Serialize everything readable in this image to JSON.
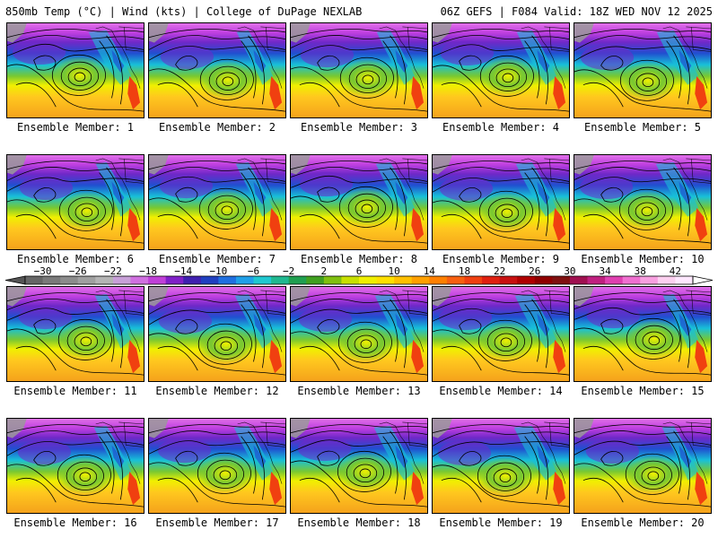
{
  "header": {
    "left": "850mb Temp (°C) | Wind (kts) | College of DuPage NEXLAB",
    "right": "06Z GEFS | F084 Valid: 18Z WED NOV 12 2025"
  },
  "members": [
    {
      "label": "Ensemble Member: 1"
    },
    {
      "label": "Ensemble Member: 2"
    },
    {
      "label": "Ensemble Member: 3"
    },
    {
      "label": "Ensemble Member: 4"
    },
    {
      "label": "Ensemble Member: 5"
    },
    {
      "label": "Ensemble Member: 6"
    },
    {
      "label": "Ensemble Member: 7"
    },
    {
      "label": "Ensemble Member: 8"
    },
    {
      "label": "Ensemble Member: 9"
    },
    {
      "label": "Ensemble Member: 10"
    },
    {
      "label": "Ensemble Member: 11"
    },
    {
      "label": "Ensemble Member: 12"
    },
    {
      "label": "Ensemble Member: 13"
    },
    {
      "label": "Ensemble Member: 14"
    },
    {
      "label": "Ensemble Member: 15"
    },
    {
      "label": "Ensemble Member: 16"
    },
    {
      "label": "Ensemble Member: 17"
    },
    {
      "label": "Ensemble Member: 18"
    },
    {
      "label": "Ensemble Member: 19"
    },
    {
      "label": "Ensemble Member: 20"
    }
  ],
  "colorbar": {
    "ticks": [
      "−30",
      "−26",
      "−22",
      "−18",
      "−14",
      "−10",
      "−6",
      "−2",
      "2",
      "6",
      "10",
      "14",
      "18",
      "22",
      "26",
      "30",
      "34",
      "38",
      "42"
    ],
    "colors": [
      "#666666",
      "#7a7a7a",
      "#8c8c8c",
      "#a0a0a0",
      "#b4b4b4",
      "#c8a0d8",
      "#d070e0",
      "#c040d8",
      "#8020c8",
      "#4020b0",
      "#2040c0",
      "#2070e0",
      "#20a0e8",
      "#20c8d0",
      "#20b890",
      "#20a050",
      "#40a020",
      "#80c010",
      "#c8e000",
      "#f0f000",
      "#ffe000",
      "#ffc000",
      "#ffa000",
      "#ff8000",
      "#f86010",
      "#f04010",
      "#e02010",
      "#c81010",
      "#b00000",
      "#900000",
      "#801010",
      "#a01050",
      "#c02080",
      "#e040b0",
      "#f070d0",
      "#f8a0e0",
      "#fcd0f0",
      "#ffe8ff"
    ]
  },
  "map_colors": {
    "warm_south": "#f5a21c",
    "warm_mid": "#ffc81e",
    "yellow": "#f0f000",
    "green": "#78c832",
    "cyan": "#18c0d8",
    "blue": "#2050d0",
    "violet": "#7028c8",
    "magenta": "#c040e0",
    "pink": "#e070e8",
    "gray": "#9a9a9a",
    "red_land": "#f04010"
  }
}
